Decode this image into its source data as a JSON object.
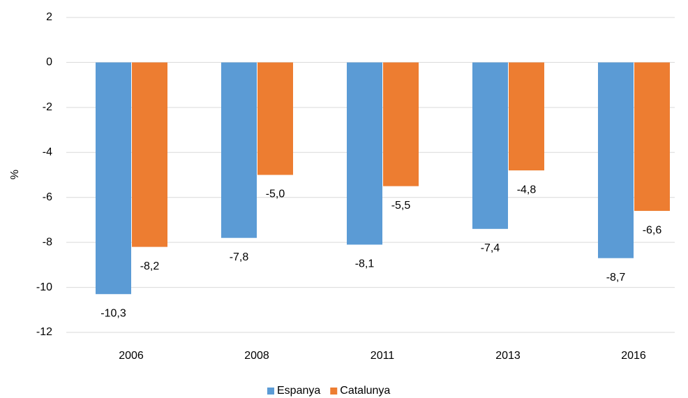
{
  "chart_data": {
    "type": "bar",
    "y_label": "%",
    "categories": [
      "2006",
      "2008",
      "2011",
      "2013",
      "2016"
    ],
    "series": [
      {
        "name": "Espanya",
        "color": "#5b9bd5",
        "values": [
          -10.3,
          -7.8,
          -8.1,
          -7.4,
          -8.7
        ],
        "value_labels": [
          "-10,3",
          "-7,8",
          "-8,1",
          "-7,4",
          "-8,7"
        ]
      },
      {
        "name": "Catalunya",
        "color": "#ed7d31",
        "values": [
          -8.2,
          -5.0,
          -5.5,
          -4.8,
          -6.6
        ],
        "value_labels": [
          "-8,2",
          "-5,0",
          "-5,5",
          "-4,8",
          "-6,6"
        ]
      }
    ],
    "ylim": [
      -12,
      2
    ],
    "yticks": [
      -12,
      -10,
      -8,
      -6,
      -4,
      -2,
      0,
      2
    ],
    "grid": true,
    "legend": "bottom"
  }
}
